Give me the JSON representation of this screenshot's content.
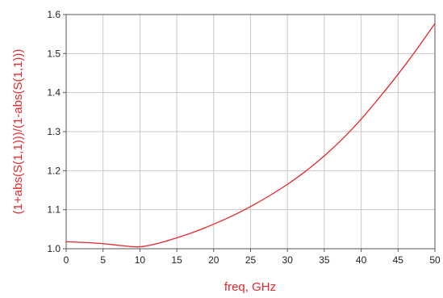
{
  "chart_data": {
    "type": "line",
    "xlabel": "freq, GHz",
    "ylabel": "(1+abs(S(1,1)))/(1-abs(S(1,1)))",
    "xlim": [
      0,
      50
    ],
    "ylim": [
      1.0,
      1.6
    ],
    "x_ticks": [
      "0",
      "5",
      "10",
      "15",
      "20",
      "25",
      "30",
      "35",
      "40",
      "45",
      "50"
    ],
    "y_ticks": [
      "1.0",
      "1.1",
      "1.2",
      "1.3",
      "1.4",
      "1.5",
      "1.6"
    ],
    "grid": true,
    "series": [
      {
        "color": "#e8262b",
        "x": [
          0,
          2.5,
          5,
          7.5,
          10,
          12.5,
          15,
          17.5,
          20,
          22.5,
          25,
          27.5,
          30,
          32.5,
          35,
          37.5,
          40,
          42.5,
          45,
          47.5,
          50
        ],
        "y": [
          1.018,
          1.016,
          1.013,
          1.008,
          1.005,
          1.014,
          1.028,
          1.044,
          1.063,
          1.084,
          1.108,
          1.135,
          1.165,
          1.199,
          1.238,
          1.282,
          1.332,
          1.388,
          1.447,
          1.51,
          1.577
        ]
      }
    ]
  },
  "colors": {
    "axis_label": "#e8262b",
    "grid": "#c8c8c8",
    "frame": "#555555"
  }
}
